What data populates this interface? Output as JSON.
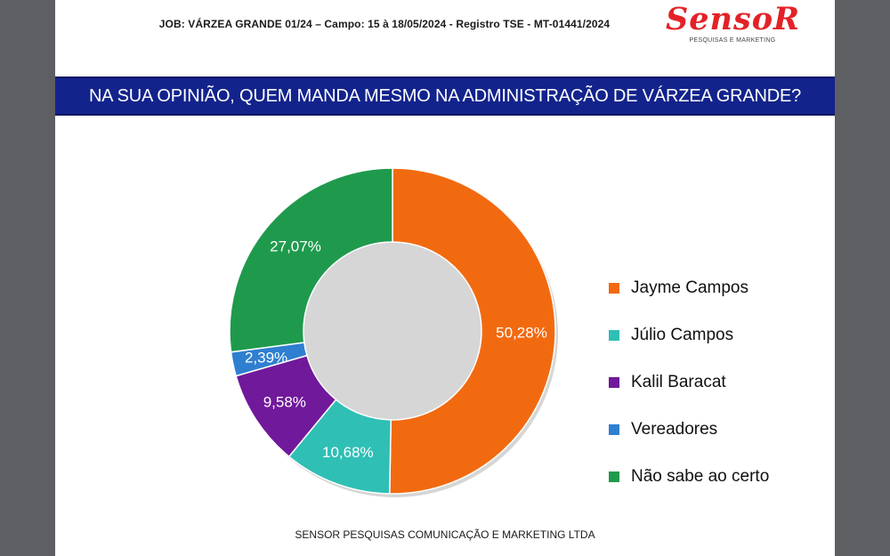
{
  "header": {
    "job_line": "JOB: VÁRZEA GRANDE 01/24 – Campo: 15 à 18/05/2024 - Registro TSE - MT-01441/2024",
    "logo": "SensoR",
    "logo_tagline": "PESQUISAS E MARKETING"
  },
  "colors": {
    "brand": "#e32227",
    "banner": "#13238c"
  },
  "chart_data": {
    "type": "pie",
    "variant": "donut",
    "title": "NA SUA OPINIÃO, QUEM MANDA MESMO NA ADMINISTRAÇÃO DE  VÁRZEA GRANDE?",
    "categories": [
      "Jayme Campos",
      "Júlio Campos",
      "Kalil Baracat",
      "Vereadores",
      "Não sabe ao certo"
    ],
    "values": [
      50.28,
      10.68,
      9.58,
      2.39,
      27.07
    ],
    "labels": [
      "50,28%",
      "10,68%",
      "9,58%",
      "2,39%",
      "27,07%"
    ],
    "colors": [
      "#f26a10",
      "#2fbfb5",
      "#70199b",
      "#2f7fd0",
      "#1f9a4d"
    ],
    "legend_position": "right"
  },
  "footer": "SENSOR PESQUISAS COMUNICAÇÃO E MARKETING LTDA"
}
